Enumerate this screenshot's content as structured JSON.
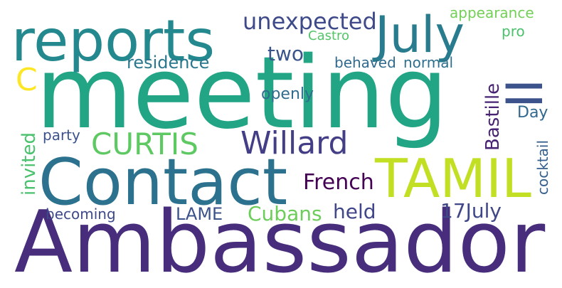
{
  "words": {
    "ambassador": {
      "text": "Ambassador",
      "color": "#472d7b"
    },
    "meeting": {
      "text": "meeting",
      "color": "#21a585"
    },
    "contact": {
      "text": "Contact",
      "color": "#2c728e"
    },
    "reports": {
      "text": "reports",
      "color": "#23898e"
    },
    "july": {
      "text": "July",
      "color": "#287c8e"
    },
    "tamil": {
      "text": "TAMIL",
      "color": "#c2df23"
    },
    "willard": {
      "text": "Willard",
      "color": "#433e85"
    },
    "curtis": {
      "text": "CURTIS",
      "color": "#5ec962"
    },
    "ii": {
      "text": "II",
      "color": "#3b528b"
    },
    "unexpected": {
      "text": "unexpected",
      "color": "#3e4a89"
    },
    "appearance": {
      "text": "appearance",
      "color": "#73d056"
    },
    "castro": {
      "text": "Castro",
      "color": "#52c569"
    },
    "pro": {
      "text": "pro",
      "color": "#4ac16d"
    },
    "two": {
      "text": "two",
      "color": "#3a548c"
    },
    "residence": {
      "text": "residence",
      "color": "#2a788e"
    },
    "behaved": {
      "text": "behaved",
      "color": "#306a8e"
    },
    "normal": {
      "text": "normal",
      "color": "#2e6f8e"
    },
    "c": {
      "text": "C",
      "color": "#fde725"
    },
    "openly": {
      "text": "openly",
      "color": "#2f6c8e"
    },
    "bastille": {
      "text": "Bastille",
      "color": "#482374"
    },
    "day": {
      "text": "Day",
      "color": "#31688e"
    },
    "invited": {
      "text": "invited",
      "color": "#4ac16d"
    },
    "party": {
      "text": "party",
      "color": "#3b528b"
    },
    "french": {
      "text": "French",
      "color": "#440154"
    },
    "cocktail": {
      "text": "cocktail",
      "color": "#355f8d"
    },
    "held": {
      "text": "held",
      "color": "#404688"
    },
    "cubans": {
      "text": "Cubans",
      "color": "#6ccd5a"
    },
    "lame": {
      "text": "LAME",
      "color": "#3b528b"
    },
    "becoming": {
      "text": "becoming",
      "color": "#3e4989"
    },
    "17july": {
      "text": "17July",
      "color": "#3f4788"
    }
  }
}
